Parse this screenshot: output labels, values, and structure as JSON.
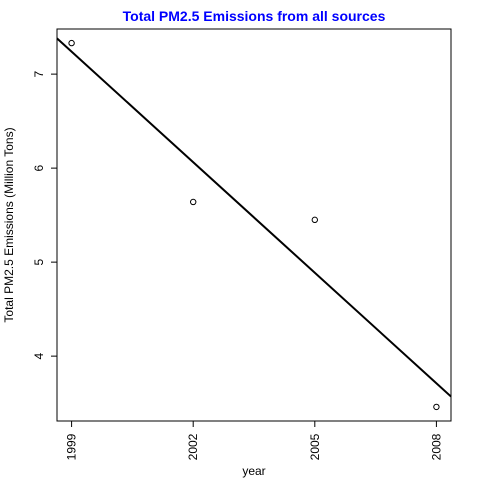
{
  "chart_data": {
    "type": "scatter",
    "title": "Total PM2.5 Emissions from all sources",
    "xlabel": "year",
    "ylabel": "Total PM2.5 Emissions (Million Tons)",
    "x": [
      1999,
      2002,
      2005,
      2008
    ],
    "y": [
      7.33,
      5.64,
      5.45,
      3.46
    ],
    "x_ticks": [
      "1999",
      "2002",
      "2005",
      "2008"
    ],
    "y_ticks": [
      "4",
      "5",
      "6",
      "7"
    ],
    "xlim": [
      1998.64,
      2008.36
    ],
    "ylim": [
      3.31,
      7.48
    ],
    "trend_line": {
      "x": [
        1998.64,
        2008.36
      ],
      "y": [
        7.38,
        3.57
      ]
    },
    "grid": false,
    "colors": {
      "title": "#0000ff",
      "marks": "#000000"
    }
  }
}
